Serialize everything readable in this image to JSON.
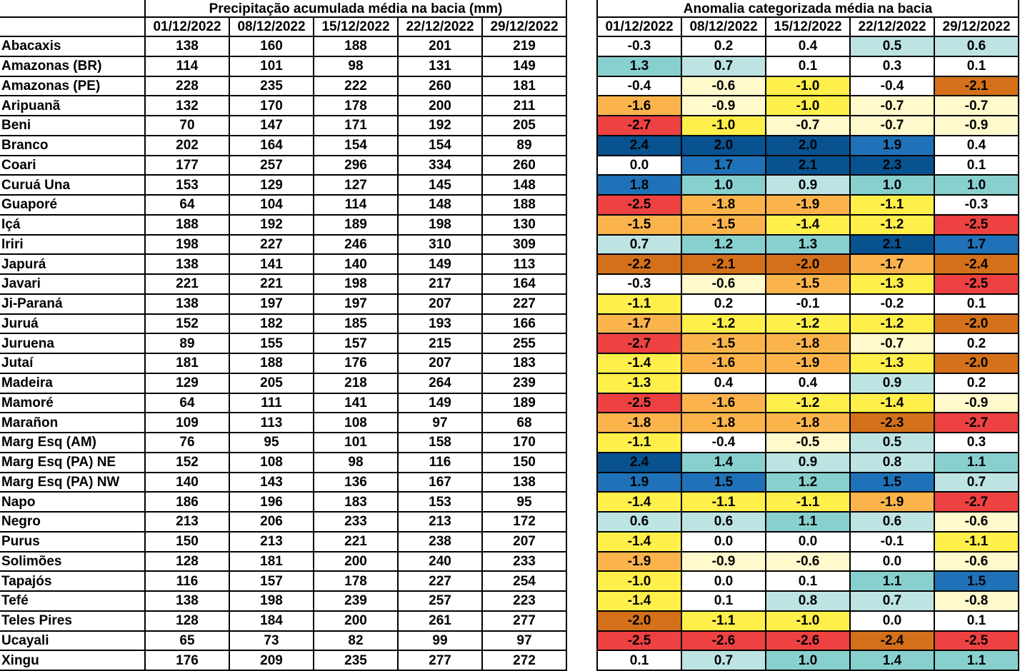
{
  "precip": {
    "title": "Precipitação acumulada média na bacia (mm)",
    "dates": [
      "01/12/2022",
      "08/12/2022",
      "15/12/2022",
      "22/12/2022",
      "29/12/2022"
    ]
  },
  "anomaly": {
    "title": "Anomalia categorizada média na bacia",
    "dates": [
      "01/12/2022",
      "08/12/2022",
      "15/12/2022",
      "22/12/2022",
      "29/12/2022"
    ],
    "palette": {
      "le_-2.5": "#ee4141",
      "-2.4_to_-2.0": "#d4701a",
      "-1.9_to_-1.5": "#fbb44c",
      "-1.4_to_-1.0": "#ffef4a",
      "-0.9_to_-0.5": "#fff9cc",
      "-0.4_to_0.4": "#ffffff",
      "0.5_to_0.9": "#bde3e3",
      "1.0_to_1.4": "#88d0ce",
      "1.5_to_1.9": "#1f72b8",
      "ge_2.0": "#08528f"
    }
  },
  "rows": [
    {
      "name": "Abacaxis",
      "precip": [
        "138",
        "160",
        "188",
        "201",
        "219"
      ],
      "anomaly": [
        "-0.3",
        "0.2",
        "0.4",
        "0.5",
        "0.6"
      ]
    },
    {
      "name": "Amazonas (BR)",
      "precip": [
        "114",
        "101",
        "98",
        "131",
        "149"
      ],
      "anomaly": [
        "1.3",
        "0.7",
        "0.1",
        "0.3",
        "0.1"
      ]
    },
    {
      "name": "Amazonas (PE)",
      "precip": [
        "228",
        "235",
        "222",
        "260",
        "181"
      ],
      "anomaly": [
        "-0.4",
        "-0.6",
        "-1.0",
        "-0.4",
        "-2.1"
      ]
    },
    {
      "name": "Aripuanã",
      "precip": [
        "132",
        "170",
        "178",
        "200",
        "211"
      ],
      "anomaly": [
        "-1.6",
        "-0.9",
        "-1.0",
        "-0.7",
        "-0.7"
      ]
    },
    {
      "name": "Beni",
      "precip": [
        "70",
        "147",
        "171",
        "192",
        "205"
      ],
      "anomaly": [
        "-2.7",
        "-1.0",
        "-0.7",
        "-0.7",
        "-0.9"
      ]
    },
    {
      "name": "Branco",
      "precip": [
        "202",
        "164",
        "154",
        "154",
        "89"
      ],
      "anomaly": [
        "2.4",
        "2.0",
        "2.0",
        "1.9",
        "0.4"
      ]
    },
    {
      "name": "Coari",
      "precip": [
        "177",
        "257",
        "296",
        "334",
        "260"
      ],
      "anomaly": [
        "0.0",
        "1.7",
        "2.1",
        "2.3",
        "0.1"
      ]
    },
    {
      "name": "Curuá Una",
      "precip": [
        "153",
        "129",
        "127",
        "145",
        "148"
      ],
      "anomaly": [
        "1.8",
        "1.0",
        "0.9",
        "1.0",
        "1.0"
      ]
    },
    {
      "name": "Guaporé",
      "precip": [
        "64",
        "104",
        "114",
        "148",
        "188"
      ],
      "anomaly": [
        "-2.5",
        "-1.8",
        "-1.9",
        "-1.1",
        "-0.3"
      ]
    },
    {
      "name": "Içá",
      "precip": [
        "188",
        "192",
        "189",
        "198",
        "130"
      ],
      "anomaly": [
        "-1.5",
        "-1.5",
        "-1.4",
        "-1.2",
        "-2.5"
      ]
    },
    {
      "name": "Iriri",
      "precip": [
        "198",
        "227",
        "246",
        "310",
        "309"
      ],
      "anomaly": [
        "0.7",
        "1.2",
        "1.3",
        "2.1",
        "1.7"
      ]
    },
    {
      "name": "Japurá",
      "precip": [
        "138",
        "141",
        "140",
        "149",
        "113"
      ],
      "anomaly": [
        "-2.2",
        "-2.1",
        "-2.0",
        "-1.7",
        "-2.4"
      ]
    },
    {
      "name": "Javari",
      "precip": [
        "221",
        "221",
        "198",
        "217",
        "164"
      ],
      "anomaly": [
        "-0.3",
        "-0.6",
        "-1.5",
        "-1.3",
        "-2.5"
      ]
    },
    {
      "name": "Ji-Paraná",
      "precip": [
        "138",
        "197",
        "197",
        "207",
        "227"
      ],
      "anomaly": [
        "-1.1",
        "0.2",
        "-0.1",
        "-0.2",
        "0.1"
      ]
    },
    {
      "name": "Juruá",
      "precip": [
        "152",
        "182",
        "185",
        "193",
        "166"
      ],
      "anomaly": [
        "-1.7",
        "-1.2",
        "-1.2",
        "-1.2",
        "-2.0"
      ]
    },
    {
      "name": "Juruena",
      "precip": [
        "89",
        "155",
        "157",
        "215",
        "255"
      ],
      "anomaly": [
        "-2.7",
        "-1.5",
        "-1.8",
        "-0.7",
        "0.2"
      ]
    },
    {
      "name": "Jutaí",
      "precip": [
        "181",
        "188",
        "176",
        "207",
        "183"
      ],
      "anomaly": [
        "-1.4",
        "-1.6",
        "-1.9",
        "-1.3",
        "-2.0"
      ]
    },
    {
      "name": "Madeira",
      "precip": [
        "129",
        "205",
        "218",
        "264",
        "239"
      ],
      "anomaly": [
        "-1.3",
        "0.4",
        "0.4",
        "0.9",
        "0.2"
      ]
    },
    {
      "name": "Mamoré",
      "precip": [
        "64",
        "111",
        "141",
        "149",
        "189"
      ],
      "anomaly": [
        "-2.5",
        "-1.6",
        "-1.2",
        "-1.4",
        "-0.9"
      ]
    },
    {
      "name": "Marañon",
      "precip": [
        "109",
        "113",
        "108",
        "97",
        "68"
      ],
      "anomaly": [
        "-1.8",
        "-1.8",
        "-1.8",
        "-2.3",
        "-2.7"
      ]
    },
    {
      "name": "Marg Esq (AM)",
      "precip": [
        "76",
        "95",
        "101",
        "158",
        "170"
      ],
      "anomaly": [
        "-1.1",
        "-0.4",
        "-0.5",
        "0.5",
        "0.3"
      ]
    },
    {
      "name": "Marg Esq (PA) NE",
      "precip": [
        "152",
        "108",
        "98",
        "116",
        "150"
      ],
      "anomaly": [
        "2.4",
        "1.4",
        "0.9",
        "0.8",
        "1.1"
      ]
    },
    {
      "name": "Marg Esq (PA) NW",
      "precip": [
        "140",
        "143",
        "136",
        "167",
        "138"
      ],
      "anomaly": [
        "1.9",
        "1.5",
        "1.2",
        "1.5",
        "0.7"
      ]
    },
    {
      "name": "Napo",
      "precip": [
        "186",
        "196",
        "183",
        "153",
        "95"
      ],
      "anomaly": [
        "-1.4",
        "-1.1",
        "-1.1",
        "-1.9",
        "-2.7"
      ]
    },
    {
      "name": "Negro",
      "precip": [
        "213",
        "206",
        "233",
        "213",
        "172"
      ],
      "anomaly": [
        "0.6",
        "0.6",
        "1.1",
        "0.6",
        "-0.6"
      ]
    },
    {
      "name": "Purus",
      "precip": [
        "150",
        "213",
        "221",
        "238",
        "207"
      ],
      "anomaly": [
        "-1.4",
        "0.0",
        "0.0",
        "-0.1",
        "-1.1"
      ]
    },
    {
      "name": "Solimões",
      "precip": [
        "128",
        "181",
        "200",
        "240",
        "233"
      ],
      "anomaly": [
        "-1.9",
        "-0.9",
        "-0.6",
        "0.0",
        "-0.6"
      ]
    },
    {
      "name": "Tapajós",
      "precip": [
        "116",
        "157",
        "178",
        "227",
        "254"
      ],
      "anomaly": [
        "-1.0",
        "0.0",
        "0.1",
        "1.1",
        "1.5"
      ]
    },
    {
      "name": "Tefé",
      "precip": [
        "138",
        "198",
        "239",
        "257",
        "223"
      ],
      "anomaly": [
        "-1.4",
        "0.1",
        "0.8",
        "0.7",
        "-0.8"
      ]
    },
    {
      "name": "Teles Pires",
      "precip": [
        "128",
        "184",
        "200",
        "261",
        "277"
      ],
      "anomaly": [
        "-2.0",
        "-1.1",
        "-1.0",
        "0.0",
        "0.1"
      ]
    },
    {
      "name": "Ucayali",
      "precip": [
        "65",
        "73",
        "82",
        "99",
        "97"
      ],
      "anomaly": [
        "-2.5",
        "-2.6",
        "-2.6",
        "-2.4",
        "-2.5"
      ]
    },
    {
      "name": "Xingu",
      "precip": [
        "176",
        "209",
        "235",
        "277",
        "272"
      ],
      "anomaly": [
        "0.1",
        "0.7",
        "1.0",
        "1.4",
        "1.1"
      ]
    }
  ]
}
